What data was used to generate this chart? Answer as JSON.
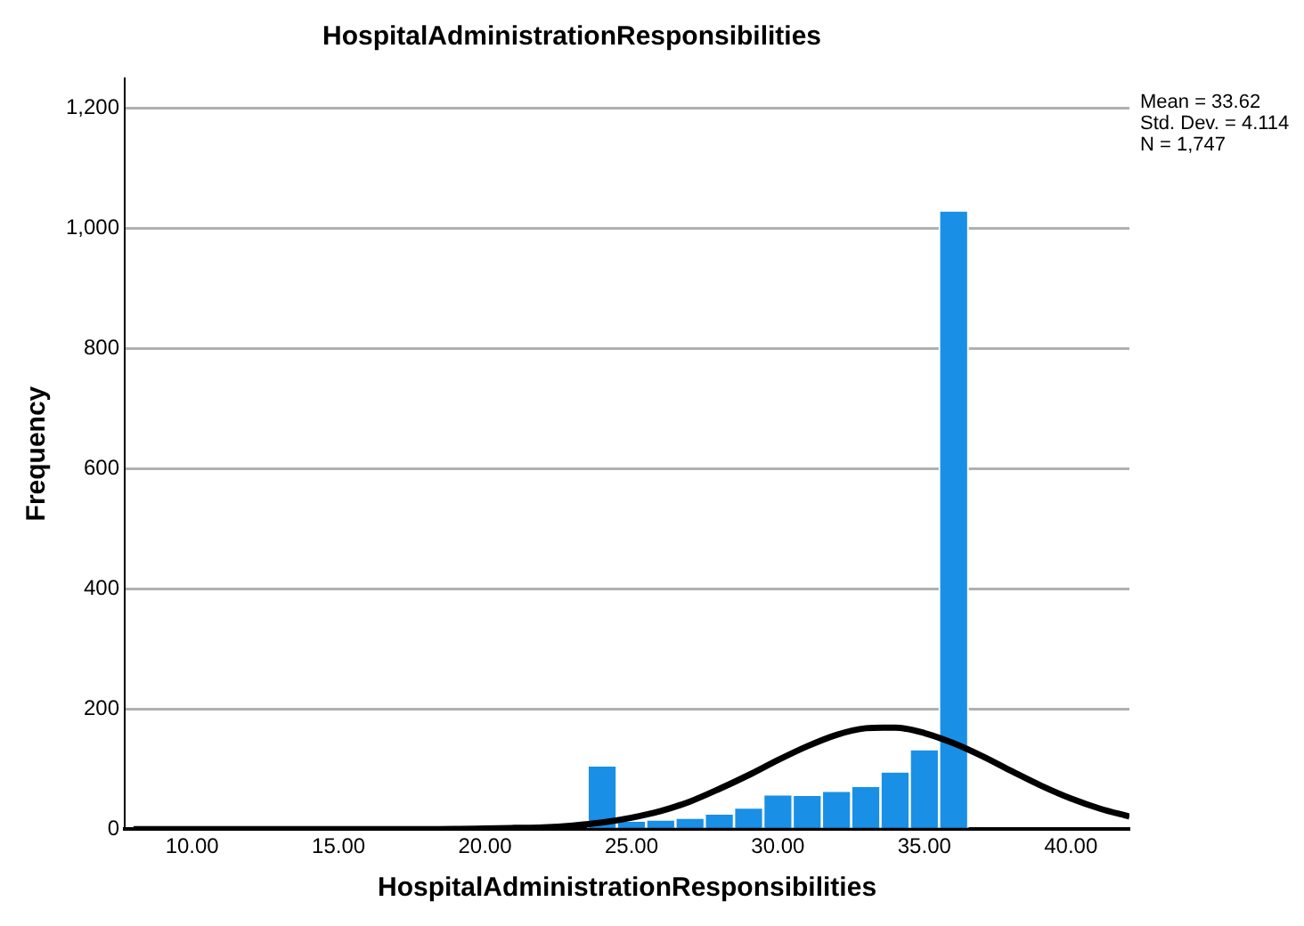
{
  "chart_data": {
    "type": "histogram",
    "title": "HospitalAdministrationResponsibilities",
    "xlabel": "HospitalAdministrationResponsibilities",
    "ylabel": "Frequency",
    "annotations": [
      "Mean = 33.62",
      "Std. Dev. = 4.114",
      "N = 1,747"
    ],
    "bins": [
      9.5,
      10.5,
      11.5,
      12.5,
      13.5,
      14.5,
      15.5,
      16.5,
      17.5,
      18.5,
      19.5,
      20.5,
      21.5,
      22.5,
      23.5,
      24.5,
      25.5,
      26.5,
      27.5,
      28.5,
      29.5,
      30.5,
      31.5,
      32.5,
      33.5,
      34.5,
      35.5,
      36.5
    ],
    "series": [
      {
        "color": "#1a8fe6",
        "values": [
          0,
          0,
          3,
          0,
          0,
          0,
          0,
          0,
          0,
          0,
          0,
          0,
          2,
          null,
          104,
          12,
          14,
          17,
          24,
          34,
          56,
          55,
          62,
          70,
          94,
          131,
          1028
        ]
      },
      {
        "type": "line",
        "color": "#000000",
        "x": [
          8,
          12,
          16,
          18,
          20,
          21,
          22,
          23,
          24,
          25,
          26,
          27,
          28,
          29,
          30,
          31,
          32,
          33,
          33.6,
          34,
          35,
          36,
          37,
          38,
          39,
          40,
          41,
          42
        ],
        "values": [
          0,
          0,
          0,
          0,
          1,
          2,
          3,
          6,
          11,
          19,
          30,
          46,
          67,
          90,
          115,
          138,
          157,
          168,
          169,
          169,
          160,
          143,
          121,
          96,
          72,
          51,
          34,
          21
        ]
      }
    ],
    "xlim": [
      7.7,
      42
    ],
    "xticks": [
      {
        "value": 10,
        "label": "10.00"
      },
      {
        "value": 15,
        "label": "15.00"
      },
      {
        "value": 20,
        "label": "20.00"
      },
      {
        "value": 25,
        "label": "25.00"
      },
      {
        "value": 30,
        "label": "30.00"
      },
      {
        "value": 35,
        "label": "35.00"
      },
      {
        "value": 40,
        "label": "40.00"
      }
    ],
    "ylim": [
      0,
      1250
    ],
    "yticks": [
      0,
      200,
      400,
      600,
      800,
      {
        "value": 1000,
        "label": "1,000"
      },
      {
        "value": 1200,
        "label": "1,200"
      }
    ],
    "grid": "y",
    "legend": false,
    "marker": "none",
    "line_style": "solid"
  }
}
